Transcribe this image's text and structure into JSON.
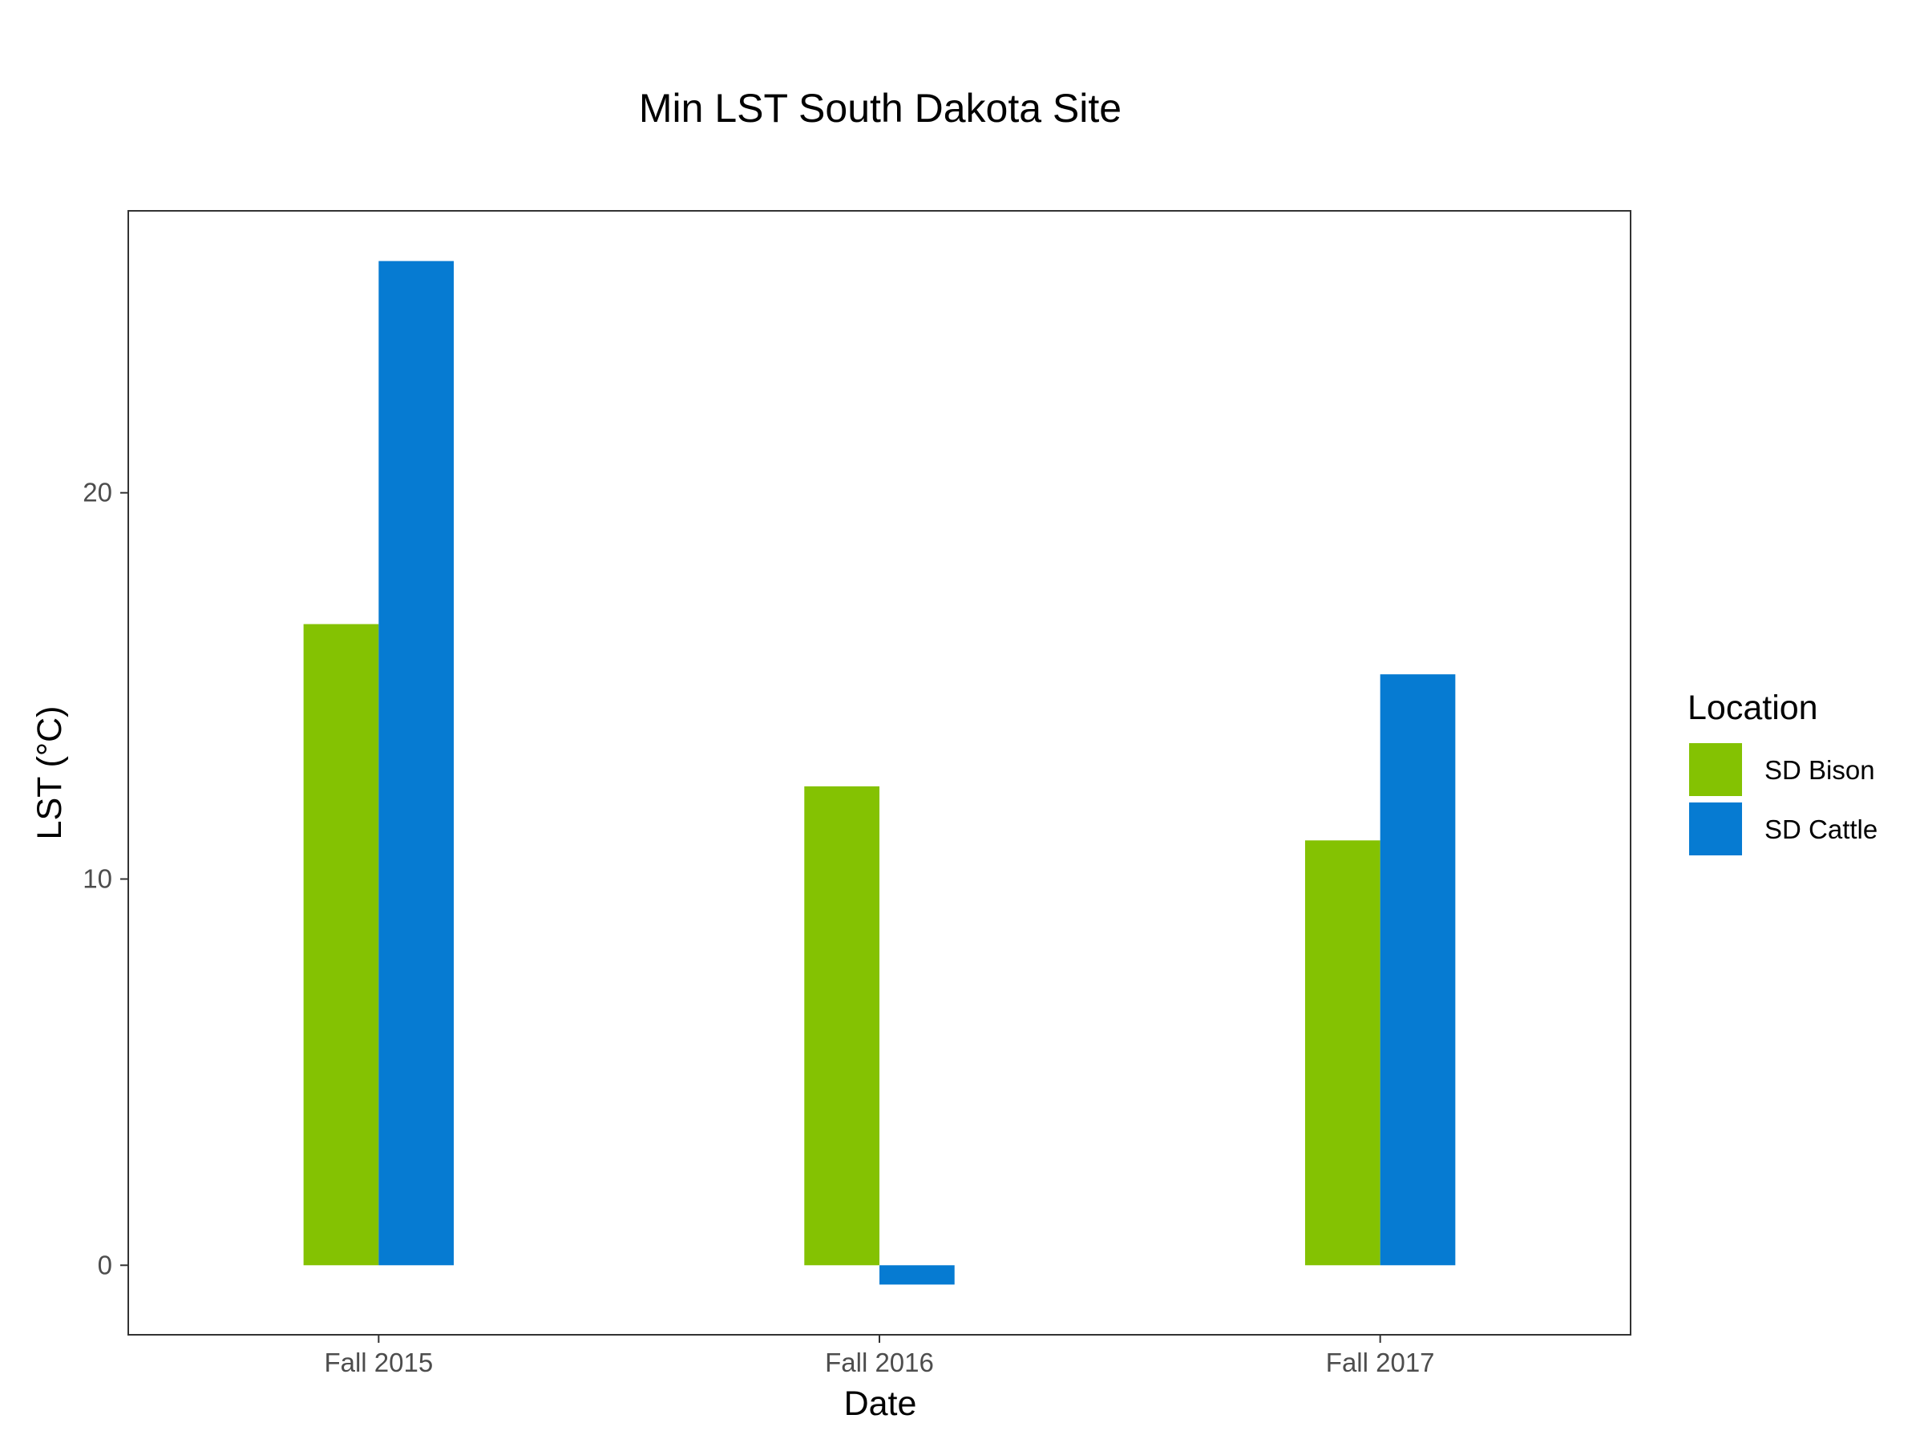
{
  "chart_data": {
    "type": "bar",
    "title": "Min LST South Dakota Site",
    "xlabel": "Date",
    "ylabel": "LST (°C)",
    "categories": [
      "Fall 2015",
      "Fall 2016",
      "Fall 2017"
    ],
    "series": [
      {
        "name": "SD Bison",
        "color": "#84C202",
        "values": [
          16.6,
          12.4,
          11.0
        ]
      },
      {
        "name": "SD Cattle",
        "color": "#067BD2",
        "values": [
          26.0,
          -0.5,
          15.3
        ]
      }
    ],
    "yticks": [
      0,
      10,
      20
    ],
    "ylim": [
      -1.8,
      27.3
    ],
    "grid": false,
    "legend": {
      "title": "Location",
      "position": "right"
    }
  }
}
